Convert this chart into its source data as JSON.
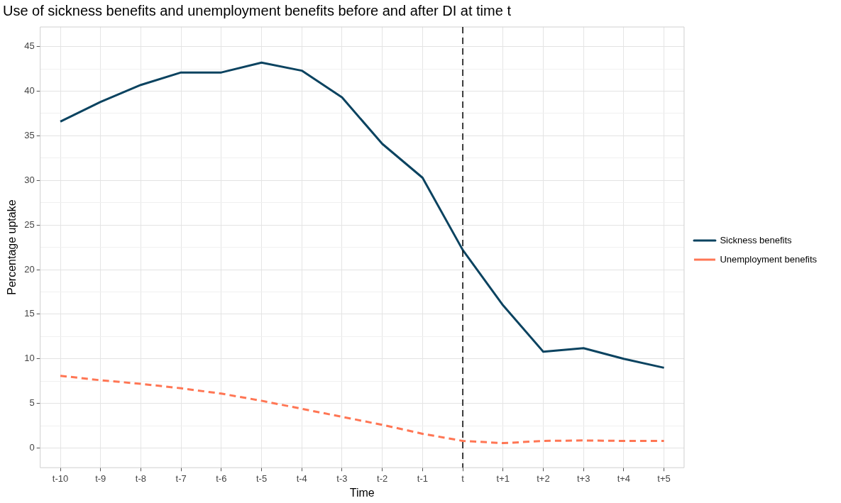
{
  "chart_data": {
    "type": "line",
    "title": "Use of sickness benefits and unemployment benefits before and after DI at time t",
    "xlabel": "Time",
    "ylabel": "Percentage uptake",
    "categories": [
      "t-10",
      "t-9",
      "t-8",
      "t-7",
      "t-6",
      "t-5",
      "t-4",
      "t-3",
      "t-2",
      "t-1",
      "t",
      "t+1",
      "t+2",
      "t+3",
      "t+4",
      "t+5"
    ],
    "series": [
      {
        "name": "Sickness benefits",
        "color": "#0b4360",
        "line_style": "solid",
        "values": [
          36.6,
          38.8,
          40.7,
          42.1,
          42.1,
          43.2,
          42.3,
          39.3,
          34.1,
          30.3,
          22.2,
          16.0,
          10.8,
          11.2,
          10.0,
          9.0
        ]
      },
      {
        "name": "Unemployment benefits",
        "color": "#ff7654",
        "line_style": "dashed",
        "values": [
          8.1,
          7.6,
          7.2,
          6.7,
          6.1,
          5.3,
          4.4,
          3.5,
          2.6,
          1.6,
          0.8,
          0.55,
          0.8,
          0.85,
          0.8,
          0.8
        ]
      }
    ],
    "ylim": [
      -2.2,
      47.2
    ],
    "yticks": [
      0,
      {
        "value": 2.5,
        "label": null
      },
      5,
      {
        "value": 7.5,
        "label": null
      },
      10,
      {
        "value": 12.5,
        "label": null
      },
      15,
      {
        "value": 17.5,
        "label": null
      },
      20,
      {
        "value": 22.5,
        "label": null
      },
      25,
      {
        "value": 27.5,
        "label": null
      },
      30,
      {
        "value": 32.5,
        "label": null
      },
      35,
      {
        "value": 37.5,
        "label": null
      },
      40,
      {
        "value": 42.5,
        "label": null
      },
      45
    ],
    "ref_lines": [
      {
        "axis": "x",
        "value": "t",
        "color": "#000000",
        "line_style": "dashed"
      }
    ],
    "grid": true,
    "legend": "right",
    "marker": "none"
  }
}
